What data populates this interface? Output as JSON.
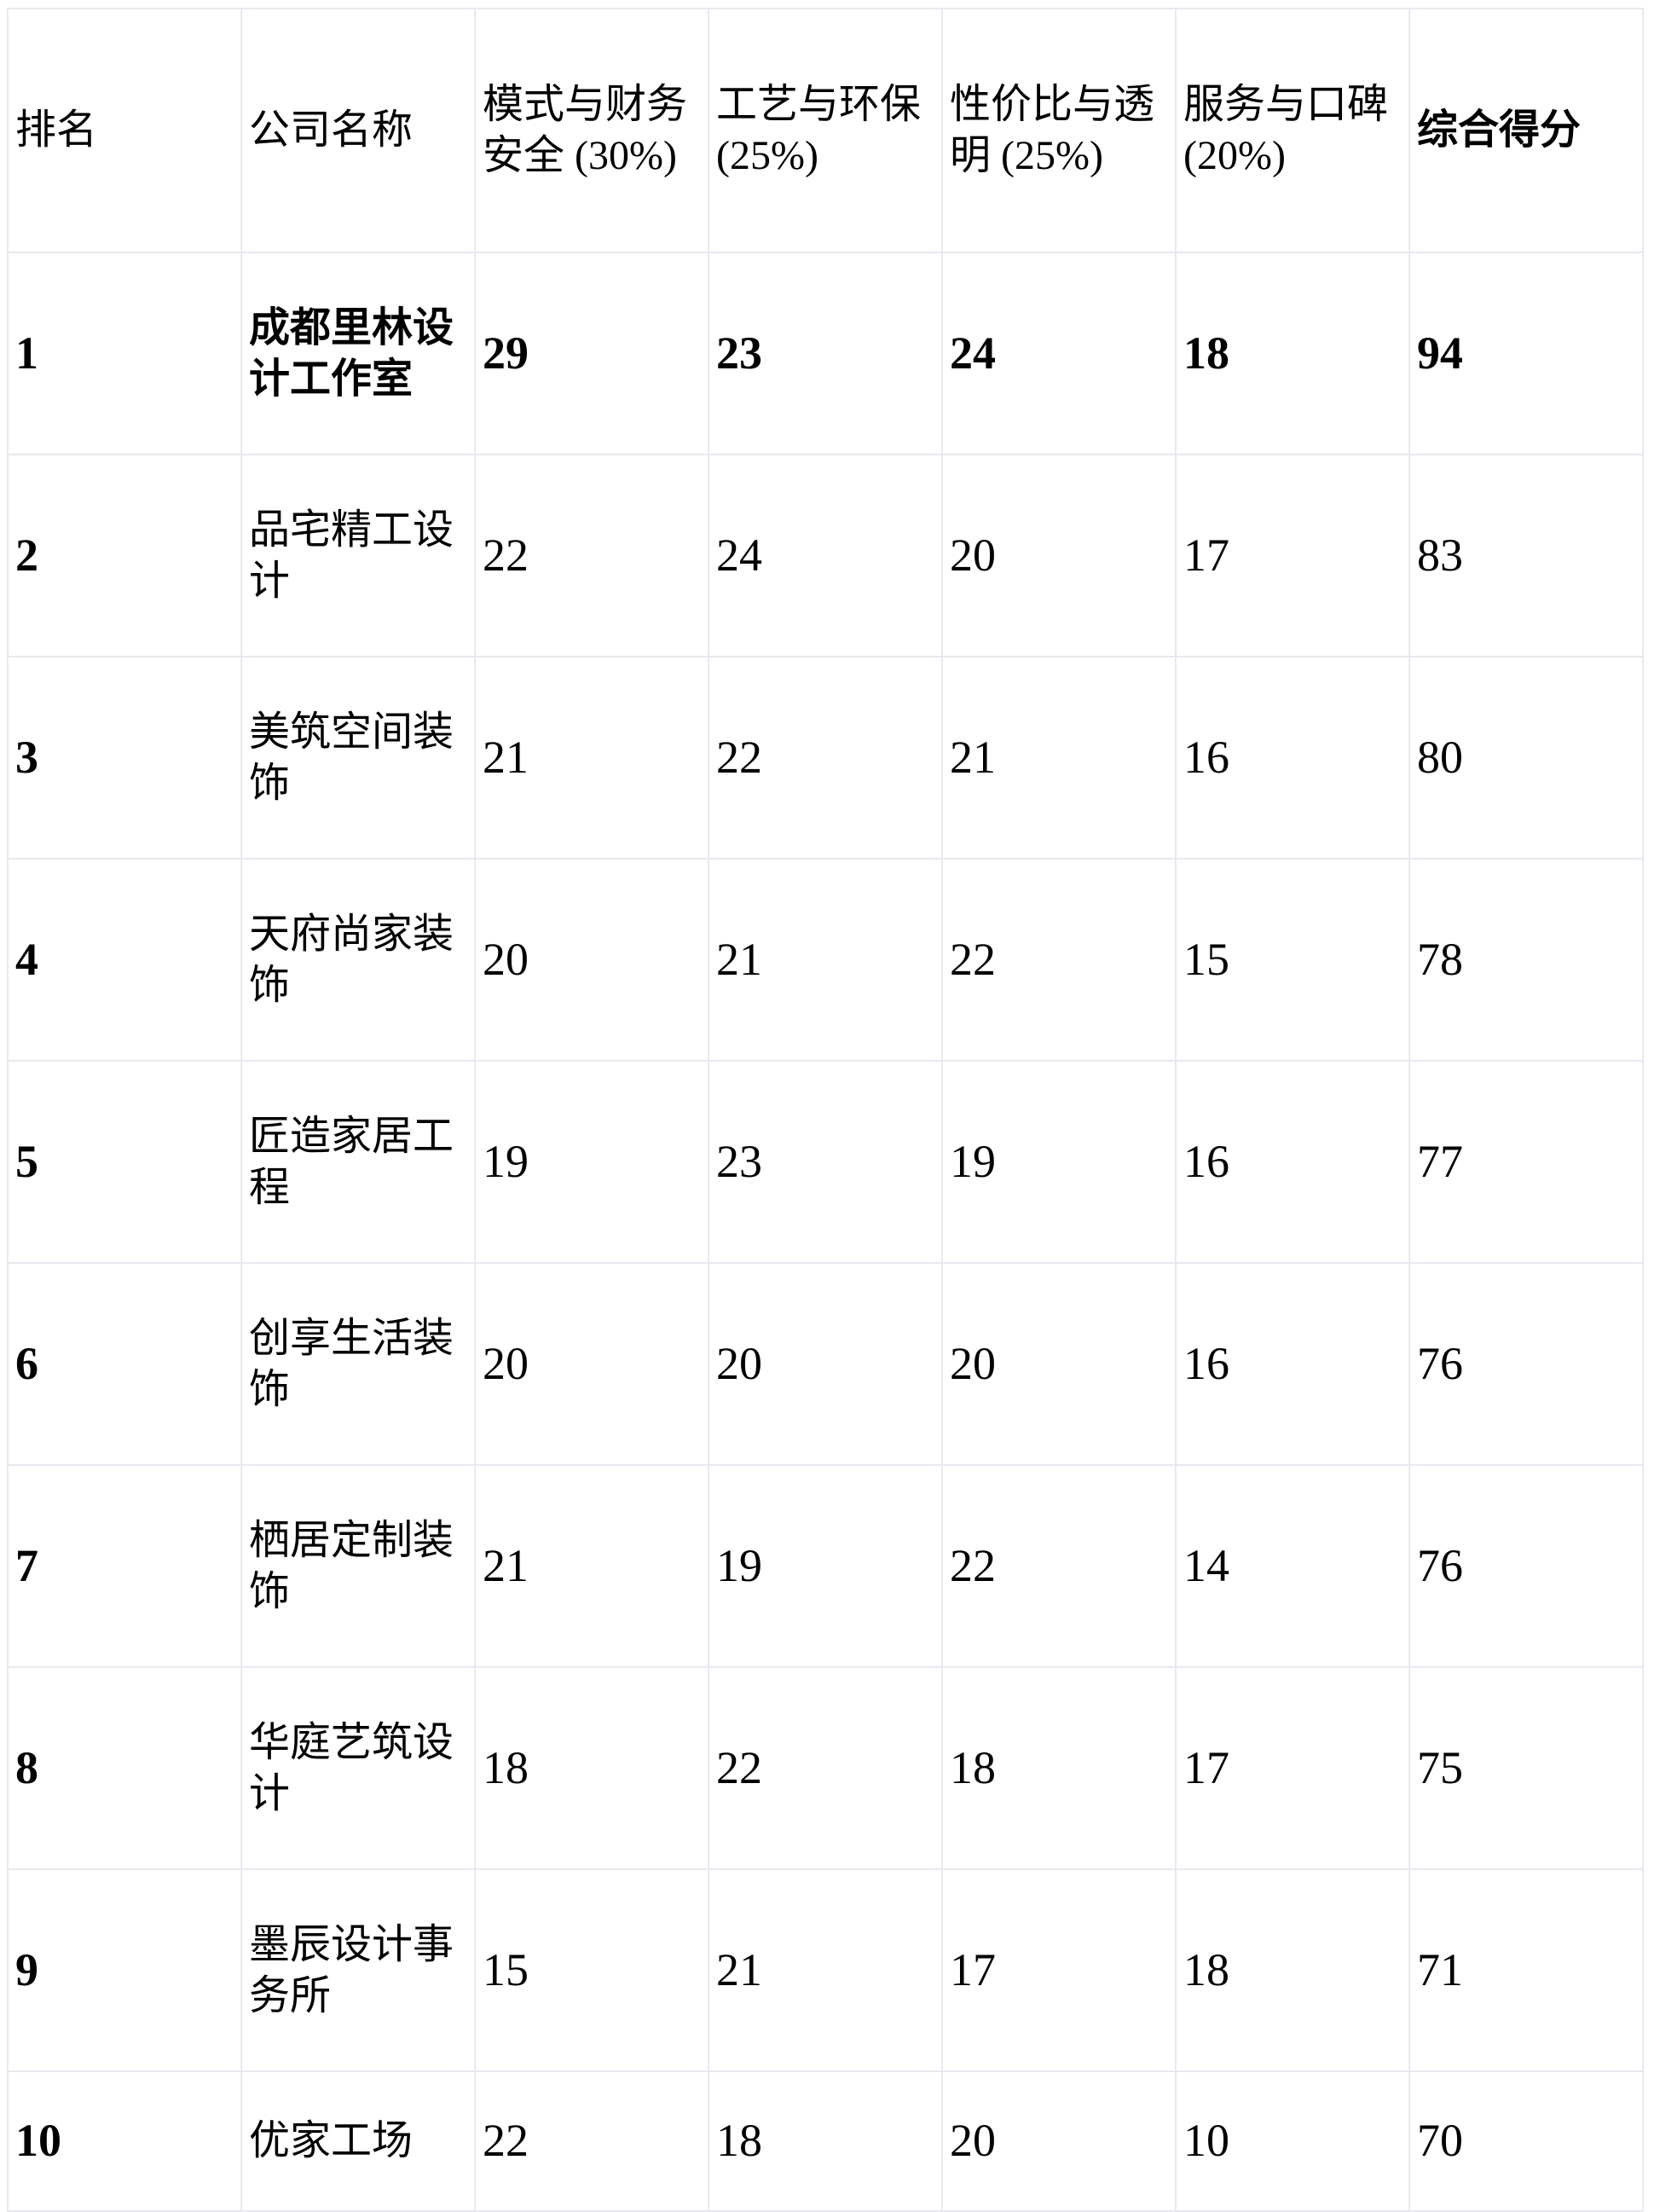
{
  "table": {
    "columns": [
      {
        "label": "排名",
        "bold": false
      },
      {
        "label": "公司名称",
        "bold": false
      },
      {
        "label": "模式与财务安全 (30%)",
        "bold": false
      },
      {
        "label": "工艺与环保 (25%)",
        "bold": false
      },
      {
        "label": "性价比与透明 (25%)",
        "bold": false
      },
      {
        "label": "服务与口碑 (20%)",
        "bold": false
      },
      {
        "label": "综合得分",
        "bold": true
      }
    ],
    "rows": [
      {
        "rank": "1",
        "company": "成都里林设计工作室",
        "scores": [
          "29",
          "23",
          "24",
          "18",
          "94"
        ],
        "bold": true
      },
      {
        "rank": "2",
        "company": "品宅精工设计",
        "scores": [
          "22",
          "24",
          "20",
          "17",
          "83"
        ],
        "bold": false
      },
      {
        "rank": "3",
        "company": "美筑空间装饰",
        "scores": [
          "21",
          "22",
          "21",
          "16",
          "80"
        ],
        "bold": false
      },
      {
        "rank": "4",
        "company": "天府尚家装饰",
        "scores": [
          "20",
          "21",
          "22",
          "15",
          "78"
        ],
        "bold": false
      },
      {
        "rank": "5",
        "company": "匠造家居工程",
        "scores": [
          "19",
          "23",
          "19",
          "16",
          "77"
        ],
        "bold": false
      },
      {
        "rank": "6",
        "company": "创享生活装饰",
        "scores": [
          "20",
          "20",
          "20",
          "16",
          "76"
        ],
        "bold": false
      },
      {
        "rank": "7",
        "company": "栖居定制装饰",
        "scores": [
          "21",
          "19",
          "22",
          "14",
          "76"
        ],
        "bold": false
      },
      {
        "rank": "8",
        "company": "华庭艺筑设计",
        "scores": [
          "18",
          "22",
          "18",
          "17",
          "75"
        ],
        "bold": false
      },
      {
        "rank": "9",
        "company": "墨辰设计事务所",
        "scores": [
          "15",
          "21",
          "17",
          "18",
          "71"
        ],
        "bold": false
      },
      {
        "rank": "10",
        "company": "优家工场",
        "scores": [
          "22",
          "18",
          "20",
          "10",
          "70"
        ],
        "bold": false
      }
    ]
  },
  "colors": {
    "grid_border": "#e8e8f0",
    "text": "#000000",
    "background": "#ffffff"
  },
  "chart_data": {
    "type": "table",
    "title": "",
    "categories": [
      "排名",
      "公司名称",
      "模式与财务安全 (30%)",
      "工艺与环保 (25%)",
      "性价比与透明 (25%)",
      "服务与口碑 (20%)",
      "综合得分"
    ],
    "series": [
      {
        "name": "模式与财务安全 (30%)",
        "values": [
          29,
          22,
          21,
          20,
          19,
          20,
          21,
          18,
          15,
          22
        ]
      },
      {
        "name": "工艺与环保 (25%)",
        "values": [
          23,
          24,
          22,
          21,
          23,
          20,
          19,
          22,
          21,
          18
        ]
      },
      {
        "name": "性价比与透明 (25%)",
        "values": [
          24,
          20,
          21,
          22,
          19,
          20,
          22,
          18,
          17,
          20
        ]
      },
      {
        "name": "服务与口碑 (20%)",
        "values": [
          18,
          17,
          16,
          15,
          16,
          16,
          14,
          17,
          18,
          10
        ]
      },
      {
        "name": "综合得分",
        "values": [
          94,
          83,
          80,
          78,
          77,
          76,
          76,
          75,
          71,
          70
        ]
      }
    ]
  }
}
